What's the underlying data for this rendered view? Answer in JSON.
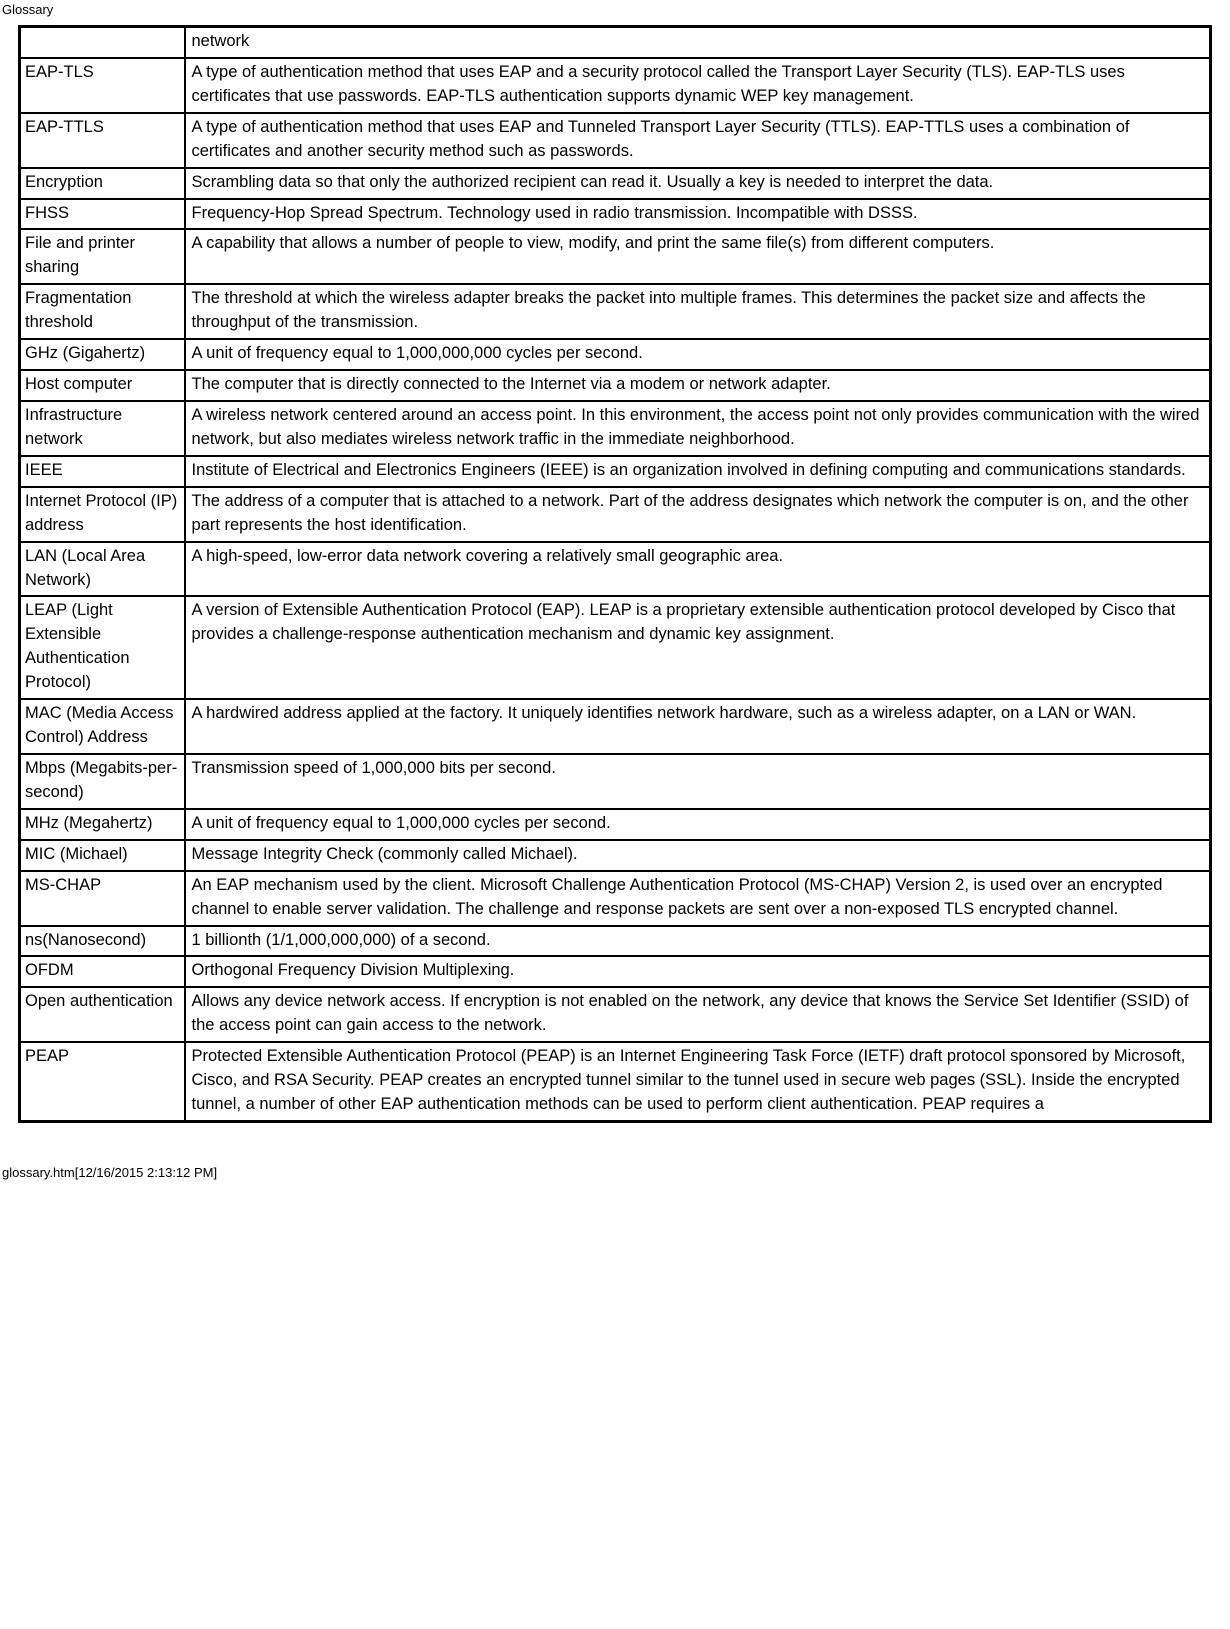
{
  "page": {
    "title": "Glossary",
    "footer": "glossary.htm[12/16/2015 2:13:12 PM]"
  },
  "table": {
    "col_widths": [
      "165px",
      "auto"
    ],
    "border_color": "#000000",
    "background_color": "#ffffff",
    "font_family": "Verdana, Geneva, sans-serif",
    "font_size_pt": 12,
    "rows": [
      {
        "term": "",
        "definition": "network"
      },
      {
        "term": "EAP-TLS",
        "definition": "A type of authentication method that uses EAP and a security protocol called the Transport Layer Security (TLS). EAP-TLS uses certificates that use passwords. EAP-TLS authentication supports dynamic WEP key management."
      },
      {
        "term": "EAP-TTLS",
        "definition": "A type of authentication method that uses EAP and Tunneled Transport Layer Security (TTLS). EAP-TTLS uses a combination of certificates and another security method such as passwords."
      },
      {
        "term": "Encryption",
        "definition": "Scrambling data so that only the authorized recipient can read it. Usually a key is needed to interpret the data."
      },
      {
        "term": "FHSS",
        "definition": "Frequency-Hop Spread Spectrum. Technology used in radio transmission. Incompatible with DSSS."
      },
      {
        "term": "File and printer sharing",
        "definition": "A capability that allows a number of people to view, modify, and print the same file(s) from different computers."
      },
      {
        "term": "Fragmentation threshold",
        "definition": "The threshold at which the wireless adapter breaks the packet into multiple frames. This determines the packet size and affects the throughput of the transmission."
      },
      {
        "term": "GHz (Gigahertz)",
        "definition": "A unit of frequency equal to 1,000,000,000 cycles per second."
      },
      {
        "term": "Host computer",
        "definition": "The computer that is directly connected to the Internet via a modem or network adapter."
      },
      {
        "term": "Infrastructure network",
        "definition": "A wireless network centered around an access point. In this environment, the access point not only provides communication with the wired network, but also mediates wireless network traffic in the immediate neighborhood."
      },
      {
        "term": "IEEE",
        "definition": "Institute of Electrical and Electronics Engineers (IEEE) is an organization involved in defining computing and communications standards."
      },
      {
        "term": "Internet Protocol (IP) address",
        "definition": "The address of a computer that is attached to a network. Part of the address designates which network the computer is on, and the other part represents the host identification."
      },
      {
        "term": "LAN (Local Area Network)",
        "definition": "A high-speed, low-error data network covering a relatively small geographic area."
      },
      {
        "term": "LEAP (Light Extensible Authentication Protocol)",
        "definition": "A version of Extensible Authentication Protocol (EAP). LEAP is a proprietary extensible authentication protocol developed by Cisco that provides a challenge-response authentication mechanism and dynamic key assignment."
      },
      {
        "term": "MAC (Media Access Control) Address",
        "definition": "A hardwired address applied at the factory. It uniquely identifies network hardware, such as a wireless adapter, on a LAN or WAN."
      },
      {
        "term": "Mbps (Megabits-per-second)",
        "definition": "Transmission speed of 1,000,000 bits per second."
      },
      {
        "term": "MHz (Megahertz)",
        "definition": "A unit of frequency equal to 1,000,000 cycles per second."
      },
      {
        "term": "MIC (Michael)",
        "definition": "Message Integrity Check (commonly called Michael)."
      },
      {
        "term": "MS-CHAP",
        "definition": "An EAP mechanism used by the client. Microsoft Challenge Authentication Protocol (MS-CHAP) Version 2, is used over an encrypted channel to enable server validation. The challenge and response packets are sent over a non-exposed TLS encrypted channel."
      },
      {
        "term": "ns(Nanosecond)",
        "definition": "1 billionth (1/1,000,000,000) of a second."
      },
      {
        "term": "OFDM",
        "definition": "Orthogonal Frequency Division Multiplexing."
      },
      {
        "term": "Open authentication",
        "definition": "Allows any device network access. If encryption is not enabled on the network, any device that knows the Service Set Identifier (SSID) of the access point can gain access to the network."
      },
      {
        "term": "PEAP",
        "definition": "Protected Extensible Authentication Protocol (PEAP) is an Internet Engineering Task Force (IETF) draft protocol sponsored by Microsoft, Cisco, and RSA Security. PEAP creates an encrypted tunnel similar to the tunnel used in secure web pages (SSL). Inside the encrypted tunnel, a number of other EAP authentication methods can be used to perform client authentication. PEAP requires a"
      }
    ]
  }
}
